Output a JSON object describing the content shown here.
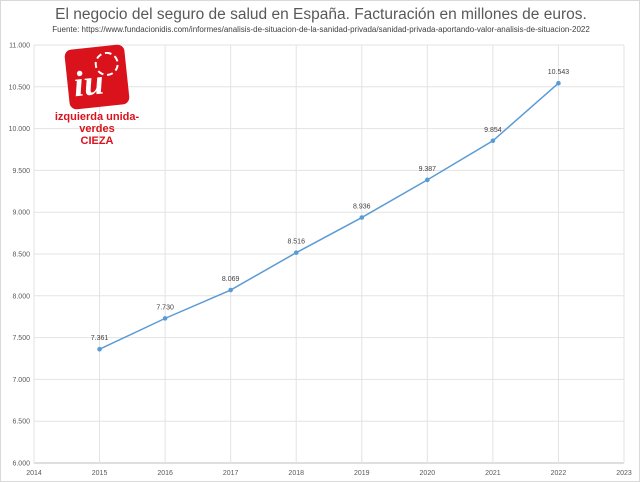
{
  "chart_data": {
    "type": "line",
    "title": "El negocio del seguro de salud en España. Facturación en millones de euros.",
    "subtitle": "Fuente: https://www.fundacionidis.com/informes/analisis-de-situacion-de-la-sanidad-privada/sanidad-privada-aportando-valor-analisis-de-situacion-2022",
    "xlabel": "",
    "ylabel": "",
    "xlim": [
      2014,
      2023
    ],
    "ylim": [
      6000,
      11000
    ],
    "x_ticks": [
      "2014",
      "2015",
      "2016",
      "2017",
      "2018",
      "2019",
      "2020",
      "2021",
      "2022",
      "2023"
    ],
    "y_ticks": [
      "6.000",
      "6.500",
      "7.000",
      "7.500",
      "8.000",
      "8.500",
      "9.000",
      "9.500",
      "10.000",
      "10.500",
      "11.000"
    ],
    "grid": true,
    "color": "#5b9bd5",
    "series": [
      {
        "x": [
          2015,
          2016,
          2017,
          2018,
          2019,
          2020,
          2021,
          2022
        ],
        "values": [
          7361,
          7730,
          8069,
          8516,
          8936,
          9387,
          9854,
          10543
        ],
        "labels": [
          "7.361",
          "7.730",
          "8.069",
          "8.516",
          "8.936",
          "9.387",
          "9.854",
          "10.543"
        ]
      }
    ]
  },
  "logo": {
    "text_line1": "izquierda unida-verdes",
    "text_line2": "CIEZA",
    "color": "#d9121b"
  }
}
